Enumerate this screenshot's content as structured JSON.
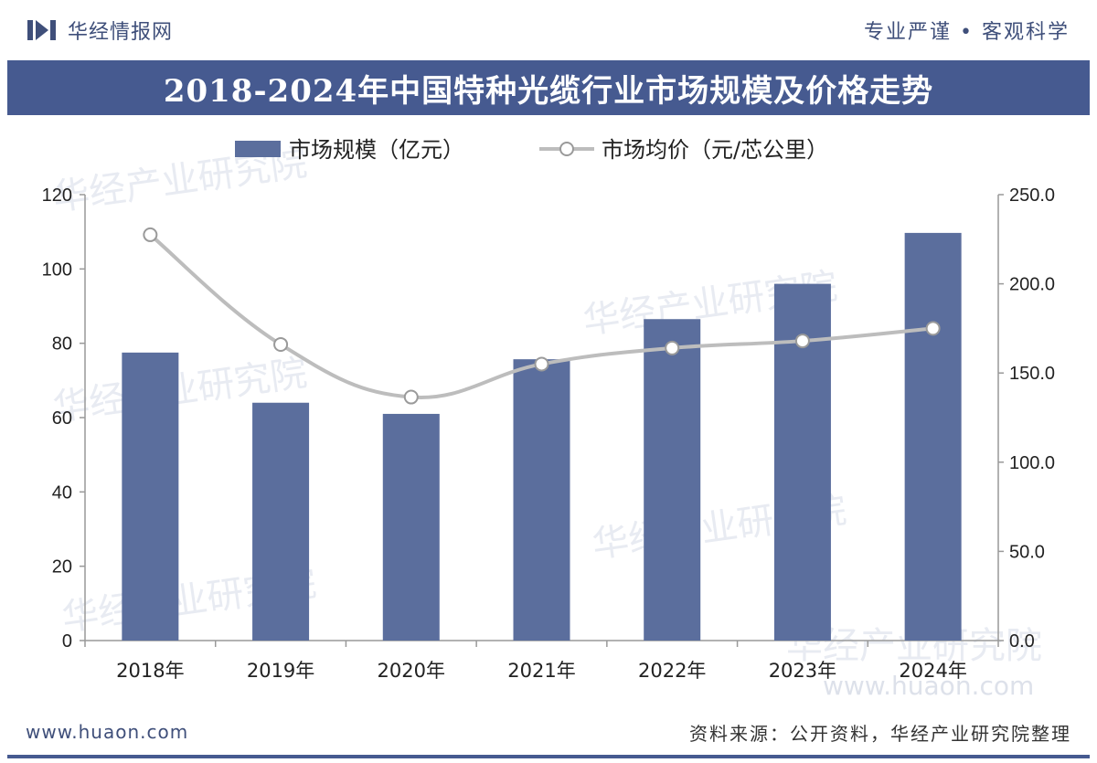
{
  "header": {
    "brand_name": "华经情报网",
    "slogan": "专业严谨 • 客观科学"
  },
  "watermark": {
    "text": "华经产业研究院",
    "url": "www.huaon.com"
  },
  "footer": {
    "url": "www.huaon.com",
    "source": "资料来源：公开资料，华经产业研究院整理"
  },
  "colors": {
    "bar": "#5b6e9d",
    "line": "#bdbdbd",
    "title_bar": "#465a90"
  },
  "chart_data": {
    "type": "bar",
    "title": "2018-2024年中国特种光缆行业市场规模及价格走势",
    "categories": [
      "2018年",
      "2019年",
      "2020年",
      "2021年",
      "2022年",
      "2023年",
      "2024年"
    ],
    "series": [
      {
        "name": "市场规模（亿元）",
        "type": "bar",
        "axis": "left",
        "values": [
          77.5,
          64.0,
          61.0,
          75.7,
          86.5,
          96.0,
          109.7
        ]
      },
      {
        "name": "市场均价（元/芯公里）",
        "type": "line",
        "axis": "right",
        "values": [
          227.5,
          166.0,
          136.5,
          155.0,
          164.0,
          168.0,
          175.0
        ]
      }
    ],
    "left_axis": {
      "min": 0,
      "max": 120,
      "ticks": [
        "0",
        "20",
        "40",
        "60",
        "80",
        "100",
        "120"
      ]
    },
    "right_axis": {
      "min": 0,
      "max": 250,
      "ticks": [
        "0.0",
        "50.0",
        "100.0",
        "150.0",
        "200.0",
        "250.0"
      ]
    },
    "legend_position": "top",
    "grid": false
  }
}
